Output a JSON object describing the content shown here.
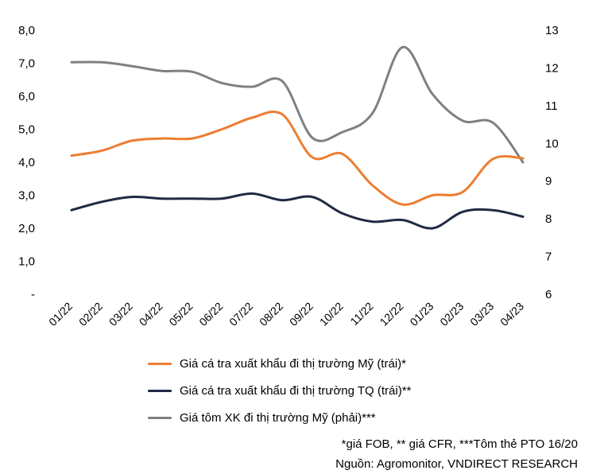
{
  "chart_data": {
    "type": "line",
    "categories": [
      "01/22",
      "02/22",
      "03/22",
      "04/22",
      "05/22",
      "06/22",
      "07/22",
      "08/22",
      "09/22",
      "10/22",
      "11/22",
      "12/22",
      "01/23",
      "02/23",
      "03/23",
      "04/23"
    ],
    "left_axis": {
      "ylim": [
        0,
        8
      ],
      "ticks": [
        "-",
        "1,0",
        "2,0",
        "3,0",
        "4,0",
        "5,0",
        "6,0",
        "7,0",
        "8,0"
      ]
    },
    "right_axis": {
      "ylim": [
        6,
        13
      ],
      "ticks": [
        "6",
        "7",
        "8",
        "9",
        "10",
        "11",
        "12",
        "13"
      ]
    },
    "series": [
      {
        "name": "Giá cá tra xuất khẩu đi thị trường Mỹ (trái)*",
        "axis": "left",
        "color": "#ED7D31",
        "values": [
          4.2,
          4.35,
          4.65,
          4.72,
          4.72,
          5.0,
          5.35,
          5.45,
          4.15,
          4.25,
          3.3,
          2.72,
          3.0,
          3.1,
          4.1,
          4.12
        ]
      },
      {
        "name": "Giá cá tra xuất khẩu đi thị trường TQ (trái)**",
        "axis": "left",
        "color": "#1F2A44",
        "values": [
          2.55,
          2.8,
          2.95,
          2.9,
          2.9,
          2.9,
          3.05,
          2.85,
          2.95,
          2.45,
          2.2,
          2.25,
          2.0,
          2.5,
          2.55,
          2.35
        ]
      },
      {
        "name": "Giá tôm XK đi thị trường Mỹ (phải)***",
        "axis": "right",
        "color": "#808080",
        "values": [
          12.15,
          12.15,
          12.05,
          11.92,
          11.9,
          11.6,
          11.5,
          11.65,
          10.15,
          10.3,
          10.8,
          12.55,
          11.3,
          10.6,
          10.55,
          9.5
        ]
      }
    ]
  },
  "notes": {
    "line1": "*giá FOB, ** giá CFR, ***Tôm thẻ PTO 16/20",
    "line2": "Nguồn: Agromonitor, VNDIRECT RESEARCH"
  }
}
